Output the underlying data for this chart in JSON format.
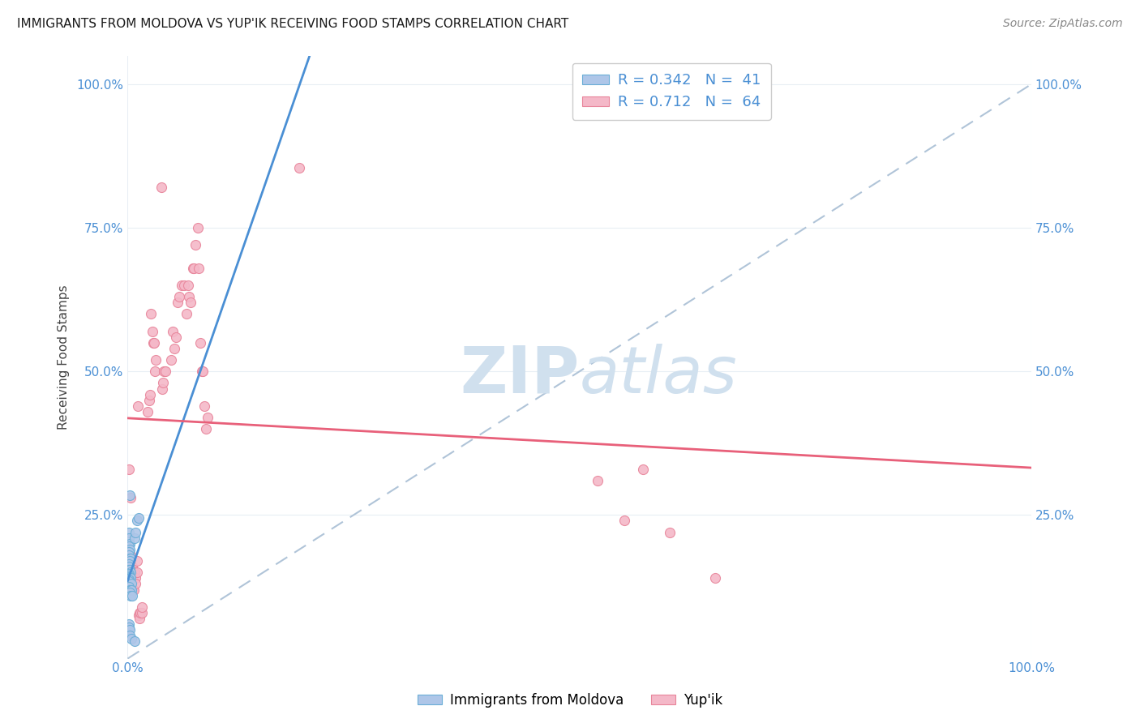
{
  "title": "IMMIGRANTS FROM MOLDOVA VS YUP'IK RECEIVING FOOD STAMPS CORRELATION CHART",
  "source": "Source: ZipAtlas.com",
  "ylabel": "Receiving Food Stamps",
  "legend_label1": "Immigrants from Moldova",
  "legend_label2": "Yup'ik",
  "legend_r1": "R = 0.342",
  "legend_n1": "N =  41",
  "legend_r2": "R = 0.712",
  "legend_n2": "N =  64",
  "ytick_labels": [
    "25.0%",
    "50.0%",
    "75.0%",
    "100.0%"
  ],
  "ytick_values": [
    25.0,
    50.0,
    75.0,
    100.0
  ],
  "xlim": [
    0,
    100
  ],
  "ylim": [
    0,
    105
  ],
  "blue_points": [
    [
      0.2,
      28.5
    ],
    [
      0.1,
      22.0
    ],
    [
      0.1,
      21.0
    ],
    [
      0.2,
      20.0
    ],
    [
      0.1,
      19.5
    ],
    [
      0.2,
      19.0
    ],
    [
      0.1,
      18.5
    ],
    [
      0.15,
      18.0
    ],
    [
      0.2,
      17.5
    ],
    [
      0.3,
      17.5
    ],
    [
      0.2,
      17.0
    ],
    [
      0.1,
      16.5
    ],
    [
      0.1,
      16.0
    ],
    [
      0.1,
      15.5
    ],
    [
      0.2,
      15.5
    ],
    [
      0.3,
      15.0
    ],
    [
      0.1,
      14.8
    ],
    [
      0.1,
      14.5
    ],
    [
      0.1,
      14.2
    ],
    [
      0.2,
      14.0
    ],
    [
      0.3,
      14.0
    ],
    [
      0.1,
      13.8
    ],
    [
      0.1,
      13.5
    ],
    [
      0.4,
      13.0
    ],
    [
      0.1,
      12.5
    ],
    [
      0.2,
      12.0
    ],
    [
      0.3,
      12.0
    ],
    [
      0.4,
      12.0
    ],
    [
      0.2,
      11.5
    ],
    [
      0.3,
      11.0
    ],
    [
      0.5,
      11.0
    ],
    [
      0.8,
      21.0
    ],
    [
      0.9,
      22.0
    ],
    [
      1.0,
      24.0
    ],
    [
      1.2,
      24.5
    ],
    [
      0.1,
      6.0
    ],
    [
      0.1,
      5.5
    ],
    [
      0.2,
      5.0
    ],
    [
      0.2,
      4.0
    ],
    [
      0.4,
      3.5
    ],
    [
      0.8,
      3.0
    ]
  ],
  "pink_points": [
    [
      0.1,
      33.0
    ],
    [
      0.3,
      28.0
    ],
    [
      0.3,
      18.0
    ],
    [
      0.4,
      16.0
    ],
    [
      0.4,
      13.0
    ],
    [
      0.5,
      16.0
    ],
    [
      0.6,
      15.0
    ],
    [
      0.6,
      12.0
    ],
    [
      0.7,
      12.0
    ],
    [
      0.8,
      15.0
    ],
    [
      0.9,
      14.0
    ],
    [
      0.9,
      13.0
    ],
    [
      1.0,
      17.0
    ],
    [
      1.0,
      15.0
    ],
    [
      1.1,
      44.0
    ],
    [
      1.2,
      7.5
    ],
    [
      1.3,
      8.0
    ],
    [
      1.3,
      7.0
    ],
    [
      1.4,
      8.0
    ],
    [
      1.6,
      8.0
    ],
    [
      1.6,
      9.0
    ],
    [
      2.2,
      43.0
    ],
    [
      2.4,
      45.0
    ],
    [
      2.5,
      46.0
    ],
    [
      2.6,
      60.0
    ],
    [
      2.7,
      57.0
    ],
    [
      2.8,
      55.0
    ],
    [
      2.9,
      55.0
    ],
    [
      3.0,
      50.0
    ],
    [
      3.1,
      52.0
    ],
    [
      3.7,
      82.0
    ],
    [
      3.8,
      47.0
    ],
    [
      3.9,
      48.0
    ],
    [
      4.0,
      50.0
    ],
    [
      4.2,
      50.0
    ],
    [
      4.8,
      52.0
    ],
    [
      5.0,
      57.0
    ],
    [
      5.2,
      54.0
    ],
    [
      5.3,
      56.0
    ],
    [
      5.5,
      62.0
    ],
    [
      5.7,
      63.0
    ],
    [
      6.0,
      65.0
    ],
    [
      6.2,
      65.0
    ],
    [
      6.5,
      60.0
    ],
    [
      6.7,
      65.0
    ],
    [
      6.8,
      63.0
    ],
    [
      7.0,
      62.0
    ],
    [
      7.2,
      68.0
    ],
    [
      7.3,
      68.0
    ],
    [
      7.5,
      72.0
    ],
    [
      7.8,
      75.0
    ],
    [
      7.9,
      68.0
    ],
    [
      8.0,
      55.0
    ],
    [
      8.2,
      50.0
    ],
    [
      8.3,
      50.0
    ],
    [
      8.5,
      44.0
    ],
    [
      8.7,
      40.0
    ],
    [
      8.8,
      42.0
    ],
    [
      52.0,
      31.0
    ],
    [
      55.0,
      24.0
    ],
    [
      57.0,
      33.0
    ],
    [
      60.0,
      22.0
    ],
    [
      65.0,
      14.0
    ],
    [
      19.0,
      85.5
    ]
  ],
  "blue_color": "#aec6e8",
  "pink_color": "#f4b8c8",
  "blue_marker_edge": "#6aaed6",
  "pink_marker_edge": "#e8849a",
  "blue_line_color": "#4a8fd4",
  "pink_line_color": "#e8607a",
  "dashed_line_color": "#b0c4d8",
  "watermark_color": "#d0e0ee",
  "background_color": "#ffffff",
  "grid_color": "#e8eef4"
}
